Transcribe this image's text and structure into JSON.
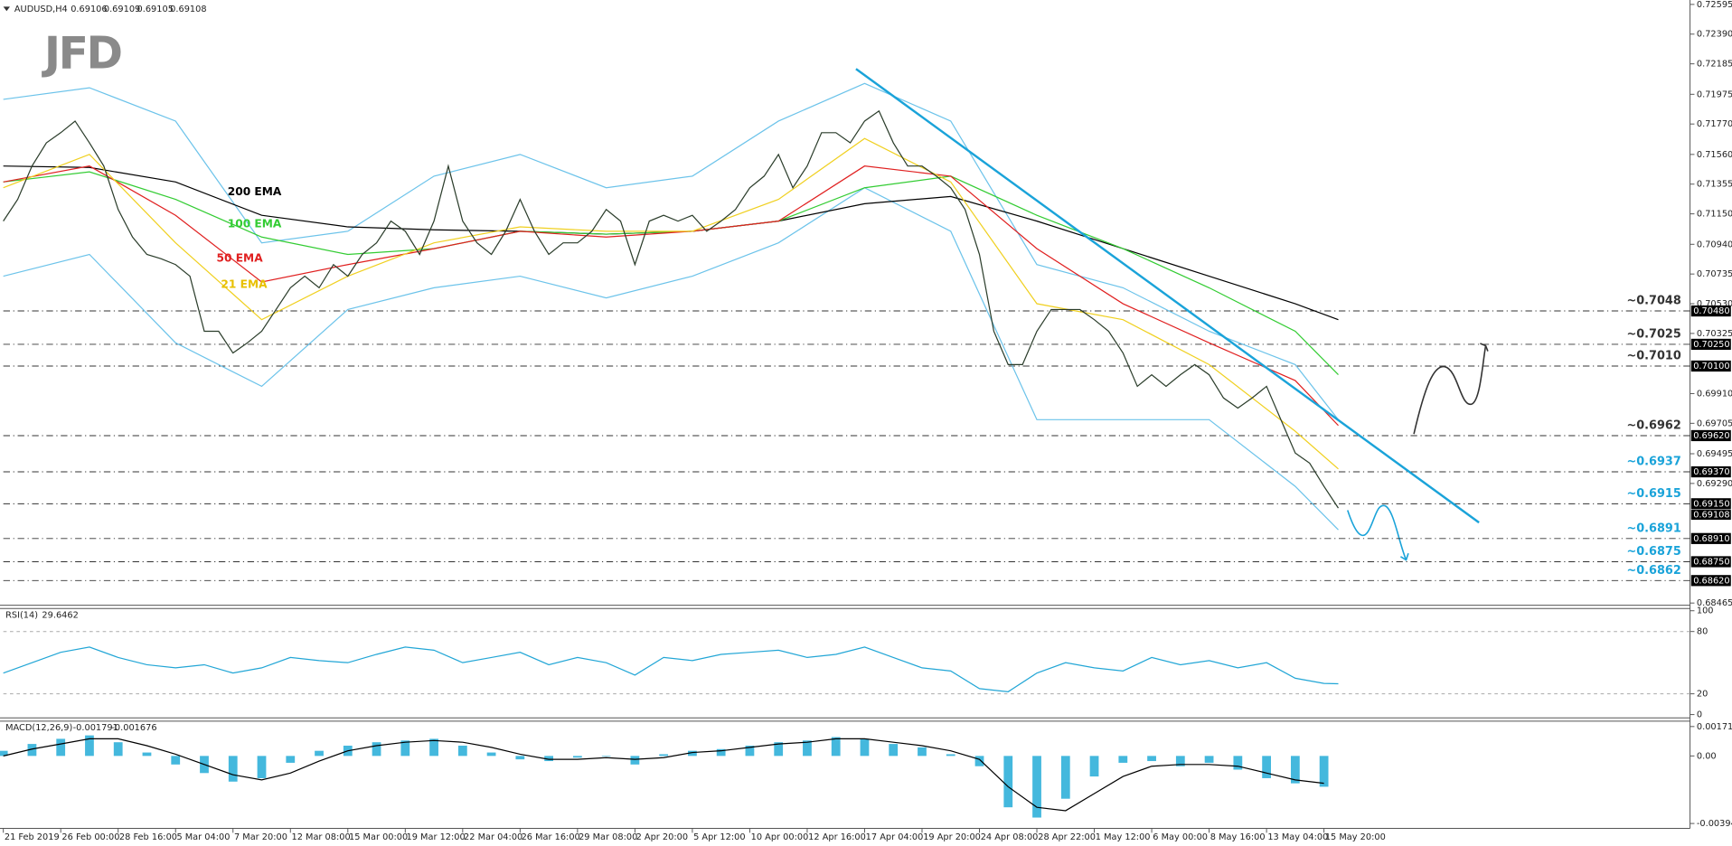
{
  "chart_data": [
    {
      "type": "line",
      "symbol": "AUDUSD,H4",
      "ohlc": [
        0.69106,
        0.69109,
        0.69105,
        0.69108
      ],
      "logo": "JFD",
      "xlim": [
        0,
        117.5
      ],
      "xticks": [
        {
          "value": 0,
          "label": "21 Feb 2019"
        },
        {
          "value": 4,
          "label": "26 Feb 00:00"
        },
        {
          "value": 8,
          "label": "28 Feb 16:00"
        },
        {
          "value": 12,
          "label": "5 Mar 04:00"
        },
        {
          "value": 16,
          "label": "7 Mar 20:00"
        },
        {
          "value": 20,
          "label": "12 Mar 08:00"
        },
        {
          "value": 24,
          "label": "15 Mar 00:00"
        },
        {
          "value": 28,
          "label": "19 Mar 12:00"
        },
        {
          "value": 32,
          "label": "22 Mar 04:00"
        },
        {
          "value": 36,
          "label": "26 Mar 16:00"
        },
        {
          "value": 40,
          "label": "29 Mar 08:00"
        },
        {
          "value": 44,
          "label": "2 Apr 20:00"
        },
        {
          "value": 48,
          "label": "5 Apr 12:00"
        },
        {
          "value": 52,
          "label": "10 Apr 00:00"
        },
        {
          "value": 56,
          "label": "12 Apr 16:00"
        },
        {
          "value": 60,
          "label": "17 Apr 04:00"
        },
        {
          "value": 64,
          "label": "19 Apr 20:00"
        },
        {
          "value": 68,
          "label": "24 Apr 08:00"
        },
        {
          "value": 72,
          "label": "28 Apr 22:00"
        },
        {
          "value": 76,
          "label": "1 May 12:00"
        },
        {
          "value": 80,
          "label": "6 May 00:00"
        },
        {
          "value": 84,
          "label": "8 May 16:00"
        },
        {
          "value": 88,
          "label": "13 May 04:00"
        },
        {
          "value": 92,
          "label": "15 May 20:00"
        }
      ],
      "ylim": [
        0.68465,
        0.72595
      ],
      "yticks": [
        0.72595,
        {
          "value": 0.7239,
          "label": "0.72390"
        },
        0.72185,
        0.71975,
        {
          "value": 0.7177,
          "label": "0.71770"
        },
        {
          "value": 0.7156,
          "label": "0.71560"
        },
        0.71355,
        {
          "value": 0.7115,
          "label": "0.71150"
        },
        {
          "value": 0.7094,
          "label": "0.70940"
        },
        0.70735,
        {
          "value": 0.7053,
          "label": "0.70530"
        },
        0.70325,
        {
          "value": 0.6991,
          "label": "0.69910"
        },
        0.69705,
        0.69495,
        {
          "value": 0.6929,
          "label": "0.69290"
        },
        0.68465
      ],
      "x": [
        0,
        1,
        2,
        3,
        4,
        5,
        6,
        7,
        8,
        9,
        10,
        11,
        12,
        13,
        14,
        15,
        16,
        17,
        18,
        19,
        20,
        21,
        22,
        23,
        24,
        25,
        26,
        27,
        28,
        29,
        30,
        31,
        32,
        33,
        34,
        35,
        36,
        37,
        38,
        39,
        40,
        41,
        42,
        43,
        44,
        45,
        46,
        47,
        48,
        49,
        50,
        51,
        52,
        53,
        54,
        55,
        56,
        57,
        58,
        59,
        60,
        61,
        62,
        63,
        64,
        65,
        66,
        67,
        68,
        69,
        70,
        71,
        72,
        73,
        74,
        75,
        76,
        77,
        78,
        79,
        80,
        81,
        82,
        83,
        84,
        85,
        86,
        87,
        88,
        89,
        90,
        91,
        92,
        93
      ],
      "series": [
        {
          "color": "#6cc3ea",
          "x": [
            0,
            6,
            12,
            18,
            24,
            30,
            36,
            42,
            48,
            54,
            60,
            66,
            72,
            78,
            84,
            90,
            93
          ],
          "values": [
            0.7194,
            0.7202,
            0.7179,
            0.7095,
            0.7103,
            0.7141,
            0.7156,
            0.7133,
            0.7141,
            0.7179,
            0.7205,
            0.7179,
            0.708,
            0.7064,
            0.7034,
            0.7011,
            0.6973
          ]
        },
        {
          "color": "#6cc3ea",
          "x": [
            0,
            6,
            12,
            18,
            24,
            30,
            36,
            42,
            48,
            54,
            60,
            66,
            72,
            78,
            84,
            90,
            93
          ],
          "values": [
            0.7072,
            0.7087,
            0.7026,
            0.6996,
            0.7049,
            0.7064,
            0.7072,
            0.7057,
            0.7072,
            0.7095,
            0.7133,
            0.7103,
            0.6973,
            0.6973,
            0.6973,
            0.6927,
            0.6897
          ]
        },
        {
          "name": "200 EMA",
          "color": "#000000",
          "x": [
            0,
            6,
            12,
            18,
            24,
            30,
            36,
            42,
            48,
            54,
            60,
            66,
            72,
            78,
            84,
            90,
            93
          ],
          "values": [
            0.7148,
            0.7147,
            0.7137,
            0.7114,
            0.7106,
            0.7104,
            0.7103,
            0.7101,
            0.7103,
            0.711,
            0.7122,
            0.7127,
            0.711,
            0.7091,
            0.7072,
            0.7053,
            0.7042
          ]
        },
        {
          "name": "100 EMA",
          "color": "#33cc33",
          "x": [
            0,
            6,
            12,
            18,
            24,
            30,
            36,
            42,
            48,
            54,
            60,
            66,
            72,
            78,
            84,
            90,
            93
          ],
          "values": [
            0.7137,
            0.7144,
            0.7125,
            0.7099,
            0.7087,
            0.7091,
            0.7103,
            0.7101,
            0.7103,
            0.711,
            0.7133,
            0.7141,
            0.7114,
            0.7091,
            0.7064,
            0.7034,
            0.7004
          ]
        },
        {
          "name": "50 EMA",
          "color": "#e02020",
          "x": [
            0,
            6,
            12,
            18,
            24,
            30,
            36,
            42,
            48,
            54,
            60,
            66,
            72,
            78,
            84,
            90,
            93
          ],
          "values": [
            0.7137,
            0.7148,
            0.7114,
            0.7068,
            0.708,
            0.7091,
            0.7103,
            0.7099,
            0.7103,
            0.711,
            0.7148,
            0.7141,
            0.7091,
            0.7053,
            0.7026,
            0.7,
            0.6969
          ]
        },
        {
          "name": "21 EMA",
          "color": "#f0d020",
          "x": [
            0,
            6,
            12,
            18,
            24,
            30,
            36,
            42,
            48,
            54,
            60,
            66,
            72,
            78,
            84,
            90,
            93
          ],
          "values": [
            0.7133,
            0.7156,
            0.7095,
            0.7042,
            0.7072,
            0.7095,
            0.7106,
            0.7103,
            0.7103,
            0.7125,
            0.7167,
            0.7137,
            0.7053,
            0.7042,
            0.7011,
            0.6965,
            0.6939
          ]
        },
        {
          "color": "#2b3d2b",
          "values": [
            0.711,
            0.7125,
            0.7148,
            0.7164,
            0.7171,
            0.7179,
            0.7164,
            0.7148,
            0.7118,
            0.7099,
            0.7087,
            0.7084,
            0.708,
            0.7072,
            0.7034,
            0.7034,
            0.7019,
            0.7026,
            0.7034,
            0.7049,
            0.7064,
            0.7072,
            0.7064,
            0.708,
            0.7072,
            0.7087,
            0.7095,
            0.711,
            0.7103,
            0.7087,
            0.711,
            0.7148,
            0.711,
            0.7095,
            0.7087,
            0.7103,
            0.7125,
            0.7103,
            0.7087,
            0.7095,
            0.7095,
            0.7103,
            0.7118,
            0.711,
            0.708,
            0.711,
            0.7114,
            0.711,
            0.7114,
            0.7103,
            0.711,
            0.7118,
            0.7133,
            0.7141,
            0.7156,
            0.7133,
            0.7148,
            0.7171,
            0.7171,
            0.7164,
            0.7179,
            0.7186,
            0.7164,
            0.7148,
            0.7148,
            0.7141,
            0.7133,
            0.7118,
            0.7087,
            0.7034,
            0.7011,
            0.7011,
            0.7034,
            0.7049,
            0.7049,
            0.7049,
            0.7042,
            0.7034,
            0.7019,
            0.6996,
            0.7004,
            0.6996,
            0.7004,
            0.7011,
            0.7004,
            0.6988,
            0.6981,
            0.6988,
            0.6996,
            0.6973,
            0.695,
            0.6943,
            0.6927,
            0.6912
          ]
        }
      ],
      "trendline": {
        "color": "#1aa3d9",
        "x": [
          59.4,
          102.8
        ],
        "values": [
          0.7215,
          0.6902
        ]
      },
      "levels": [
        {
          "value": 0.7048,
          "label": "~0.7048",
          "axis_label": "0.70480",
          "color": "#333333"
        },
        {
          "value": 0.7025,
          "label": "~0.7025",
          "axis_label": "0.70250",
          "color": "#333333"
        },
        {
          "value": 0.701,
          "label": "~0.7010",
          "axis_label": "0.70100",
          "color": "#333333"
        },
        {
          "value": 0.6962,
          "label": "~0.6962",
          "axis_label": "0.69620",
          "color": "#333333"
        },
        {
          "value": 0.6937,
          "label": "~0.6937",
          "axis_label": "0.69370",
          "color": "#1aa3d9"
        },
        {
          "value": 0.6915,
          "label": "~0.6915",
          "axis_label": "0.69150",
          "color": "#1aa3d9"
        },
        {
          "value": 0.6891,
          "label": "~0.6891",
          "axis_label": "0.68910",
          "color": "#1aa3d9"
        },
        {
          "value": 0.6875,
          "label": "~0.6875",
          "axis_label": "0.68750",
          "color": "#1aa3d9"
        },
        {
          "value": 0.6862,
          "label": "~0.6862",
          "axis_label": "0.68620",
          "color": "#1aa3d9"
        }
      ]
    },
    {
      "type": "line",
      "title": "RSI(14)",
      "ylim": [
        0,
        100
      ],
      "yticks": [
        100,
        80,
        20,
        0
      ],
      "levels": [
        80,
        20
      ],
      "series": [
        {
          "color": "#22a6d6",
          "x": [
            0,
            2,
            4,
            6,
            8,
            10,
            12,
            14,
            16,
            18,
            20,
            22,
            24,
            26,
            28,
            30,
            32,
            34,
            36,
            38,
            40,
            42,
            44,
            46,
            48,
            50,
            52,
            54,
            56,
            58,
            60,
            62,
            64,
            66,
            68,
            70,
            72,
            74,
            76,
            78,
            80,
            82,
            84,
            86,
            88,
            90,
            92,
            93
          ],
          "values": [
            40,
            50,
            60,
            65,
            55,
            48,
            45,
            48,
            40,
            45,
            55,
            52,
            50,
            58,
            65,
            62,
            50,
            55,
            60,
            48,
            55,
            50,
            38,
            55,
            52,
            58,
            60,
            62,
            55,
            58,
            65,
            55,
            45,
            42,
            25,
            22,
            40,
            50,
            45,
            42,
            55,
            48,
            52,
            45,
            50,
            35,
            30,
            29.6462
          ]
        }
      ]
    },
    {
      "type": "bar",
      "title": "MACD(12,26,9)",
      "readout": [
        -0.001791,
        -0.001676
      ],
      "ylim": [
        -0.0041,
        0.0019
      ],
      "yticks": [
        0.001717,
        {
          "value": 0,
          "label": "0.00"
        },
        -0.003946
      ],
      "series": [
        {
          "type": "bar",
          "color": "#44b8dd",
          "x": [
            0,
            2,
            4,
            6,
            8,
            10,
            12,
            14,
            16,
            18,
            20,
            22,
            24,
            26,
            28,
            30,
            32,
            34,
            36,
            38,
            40,
            42,
            44,
            46,
            48,
            50,
            52,
            54,
            56,
            58,
            60,
            62,
            64,
            66,
            68,
            70,
            72,
            74,
            76,
            78,
            80,
            82,
            84,
            86,
            88,
            90,
            92
          ],
          "values": [
            0.0003,
            0.0007,
            0.001,
            0.0012,
            0.0008,
            0.0002,
            -0.0005,
            -0.001,
            -0.0015,
            -0.0013,
            -0.0004,
            0.0003,
            0.0006,
            0.0008,
            0.0009,
            0.001,
            0.0006,
            0.0002,
            -0.0002,
            -0.0003,
            -0.0001,
            0.0,
            -0.0005,
            0.0001,
            0.0003,
            0.0004,
            0.0006,
            0.0008,
            0.0009,
            0.0011,
            0.001,
            0.0007,
            0.0005,
            0.0001,
            -0.0006,
            -0.003,
            -0.0036,
            -0.0025,
            -0.0012,
            -0.0004,
            -0.0003,
            -0.0006,
            -0.0004,
            -0.0008,
            -0.0013,
            -0.0016,
            -0.0018
          ]
        },
        {
          "type": "line",
          "color": "#000000",
          "x": [
            0,
            2,
            4,
            6,
            8,
            10,
            12,
            14,
            16,
            18,
            20,
            22,
            24,
            26,
            28,
            30,
            32,
            34,
            36,
            38,
            40,
            42,
            44,
            46,
            48,
            50,
            52,
            54,
            56,
            58,
            60,
            62,
            64,
            66,
            68,
            70,
            72,
            74,
            76,
            78,
            80,
            82,
            84,
            86,
            88,
            90,
            92
          ],
          "values": [
            0.0,
            0.0004,
            0.0007,
            0.001,
            0.001,
            0.0006,
            0.0001,
            -0.0005,
            -0.0011,
            -0.0014,
            -0.001,
            -0.0003,
            0.0003,
            0.0006,
            0.0008,
            0.0009,
            0.0008,
            0.0005,
            0.0001,
            -0.0002,
            -0.0002,
            -0.0001,
            -0.0002,
            -0.0001,
            0.0002,
            0.0003,
            0.0005,
            0.0007,
            0.0008,
            0.001,
            0.001,
            0.0008,
            0.0006,
            0.0003,
            -0.0002,
            -0.0018,
            -0.003,
            -0.0032,
            -0.0022,
            -0.0012,
            -0.0006,
            -0.0005,
            -0.0005,
            -0.0006,
            -0.001,
            -0.0014,
            -0.0016
          ]
        }
      ]
    }
  ]
}
